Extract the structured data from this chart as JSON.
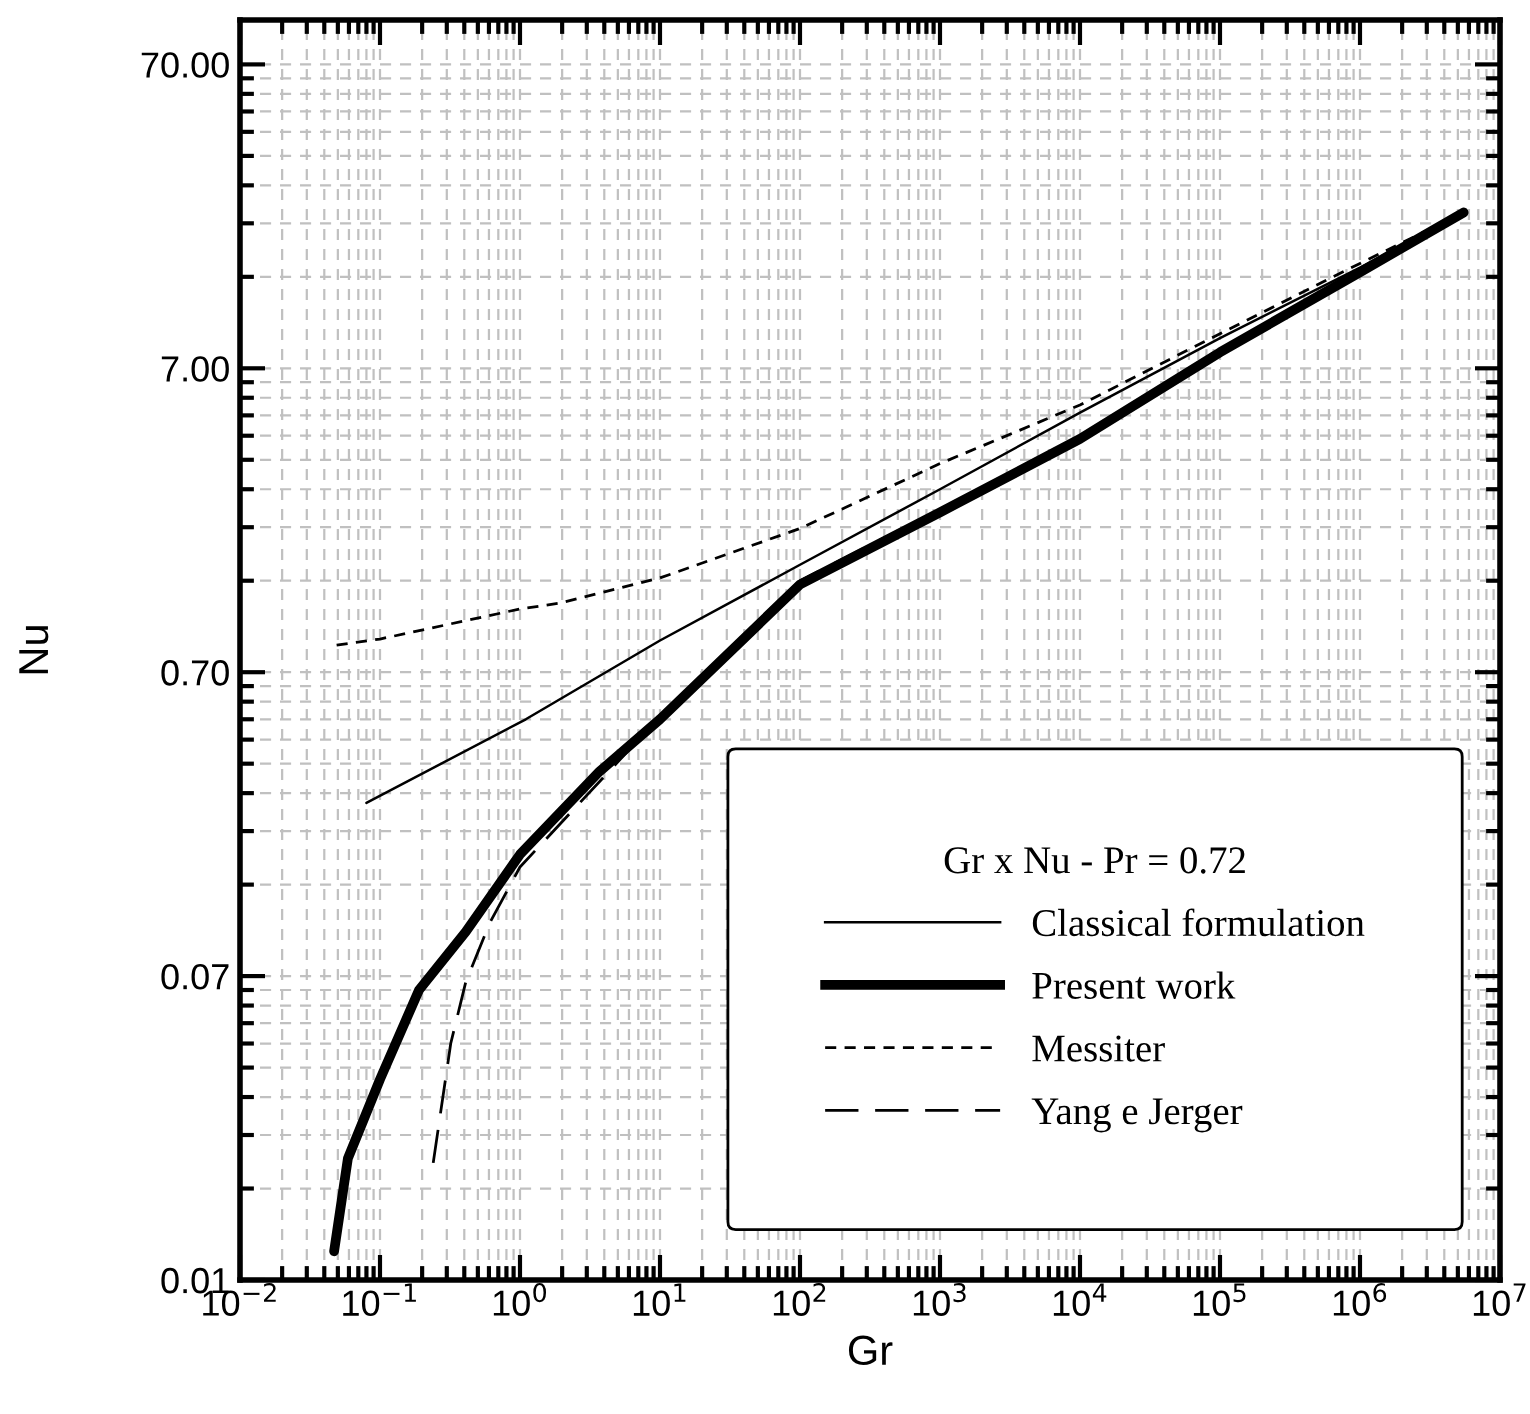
{
  "chart_data": {
    "type": "line",
    "xlabel": "Gr",
    "ylabel": "Nu",
    "log": "xy",
    "grid": true,
    "legend": "bottom right",
    "legend_title": "Gr x Nu - Pr = 0.72",
    "xlim": [
      0.01,
      10000000
    ],
    "xticks": [
      {
        "value": 0.01,
        "label": "10$^{−2}$"
      },
      {
        "value": 0.1,
        "label": "10$^{−1}$"
      },
      {
        "value": 1,
        "label": "10$^{0}$"
      },
      {
        "value": 10,
        "label": "10$^{1}$"
      },
      {
        "value": 100,
        "label": "10$^{2}$"
      },
      {
        "value": 1000,
        "label": "10$^{3}$"
      },
      {
        "value": 10000,
        "label": "10$^{4}$"
      },
      {
        "value": 100000,
        "label": "10$^{5}$"
      },
      {
        "value": 1000000,
        "label": "10$^{6}$"
      },
      {
        "value": 10000000,
        "label": "10$^{7}$"
      }
    ],
    "ylim": [
      0.007,
      98
    ],
    "yticks": [
      {
        "value": 0.007,
        "label": "0.01"
      },
      {
        "value": 0.07,
        "label": "0.07"
      },
      {
        "value": 0.7,
        "label": "0.70"
      },
      {
        "value": 7,
        "label": "7.00"
      },
      {
        "value": 70,
        "label": "70.00"
      }
    ],
    "series": [
      {
        "name": "Classical formulation",
        "color": "#000000",
        "line_style": "solid",
        "x": [
          0.08,
          1.1,
          10,
          100,
          1000,
          10000,
          100000,
          1000000,
          5500000
        ],
        "values": [
          0.26,
          0.49,
          0.89,
          1.58,
          2.8,
          5.0,
          8.8,
          15,
          22.8
        ]
      },
      {
        "name": "Present work",
        "color": "#000000",
        "line_style": "solid",
        "x": [
          0.047,
          0.059,
          0.1,
          0.19,
          0.41,
          1,
          3.7,
          10,
          100,
          1000,
          10000,
          100000,
          1000000,
          5500000
        ],
        "values": [
          0.0087,
          0.0176,
          0.032,
          0.063,
          0.098,
          0.176,
          0.33,
          0.49,
          1.36,
          2.35,
          4.1,
          7.9,
          14.5,
          22.8
        ]
      },
      {
        "name": "Messiter",
        "color": "#000000",
        "line_style": "dashed",
        "x": [
          0.049,
          0.1,
          1,
          1.9,
          10,
          100,
          1000,
          10000,
          100000,
          1000000,
          5500000
        ],
        "values": [
          0.86,
          0.9,
          1.13,
          1.18,
          1.43,
          2.08,
          3.4,
          5.3,
          9.1,
          15.5,
          22.8
        ]
      },
      {
        "name": "Yang e Jerger",
        "color": "#000000",
        "line_style": "dashed",
        "x": [
          0.24,
          0.32,
          0.41,
          0.61,
          1,
          10,
          100,
          1000,
          10000,
          100000,
          1000000,
          5500000
        ],
        "values": [
          0.017,
          0.042,
          0.067,
          0.105,
          0.16,
          0.5,
          1.4,
          2.4,
          4.1,
          8,
          14.8,
          22.8
        ]
      }
    ]
  }
}
